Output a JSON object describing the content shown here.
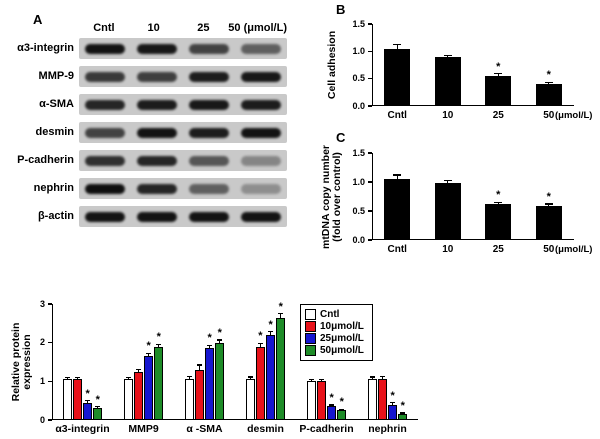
{
  "panel_a": {
    "label": "A",
    "lane_headers": [
      "Cntl",
      "10",
      "25",
      "50 (μmol/L)"
    ],
    "rows": [
      {
        "label": "α3-integrin",
        "bands": [
          0.95,
          0.92,
          0.7,
          0.55
        ]
      },
      {
        "label": "MMP-9",
        "bands": [
          0.75,
          0.72,
          0.9,
          0.92
        ]
      },
      {
        "label": "α-SMA",
        "bands": [
          0.85,
          0.9,
          0.92,
          0.9
        ]
      },
      {
        "label": "desmin",
        "bands": [
          0.7,
          0.95,
          0.9,
          0.95
        ]
      },
      {
        "label": "P-cadherin",
        "bands": [
          0.8,
          0.85,
          0.6,
          0.35
        ]
      },
      {
        "label": "nephrin",
        "bands": [
          0.97,
          0.85,
          0.55,
          0.3
        ]
      },
      {
        "label": "β-actin",
        "bands": [
          0.95,
          0.95,
          0.95,
          0.95
        ]
      }
    ]
  },
  "chart_data": [
    {
      "id": "B",
      "panel_label": "B",
      "type": "bar",
      "ylabel": "Cell adhesion",
      "categories": [
        "Cntl",
        "10",
        "25",
        "50"
      ],
      "unit_label": "(μmol/L)",
      "values": [
        1.05,
        0.9,
        0.55,
        0.4
      ],
      "errors": [
        0.08,
        0.03,
        0.04,
        0.03
      ],
      "sig": [
        false,
        false,
        true,
        true
      ],
      "ylim": [
        0,
        1.5
      ],
      "yticks": [
        "0.0",
        "0.5",
        "1.0",
        "1.5"
      ],
      "bar_color": "#000000"
    },
    {
      "id": "C",
      "panel_label": "C",
      "type": "bar",
      "ylabel": [
        "mtDNA copy number",
        "(fold over control)"
      ],
      "categories": [
        "Cntl",
        "10",
        "25",
        "50"
      ],
      "unit_label": "(μmol/L)",
      "values": [
        1.05,
        0.98,
        0.62,
        0.58
      ],
      "errors": [
        0.07,
        0.04,
        0.03,
        0.04
      ],
      "sig": [
        false,
        false,
        true,
        true
      ],
      "ylim": [
        0,
        1.5
      ],
      "yticks": [
        "0.0",
        "0.5",
        "1.0",
        "1.5"
      ],
      "bar_color": "#000000"
    },
    {
      "id": "D",
      "type": "grouped-bar",
      "ylabel": [
        "Relative protein",
        "expression"
      ],
      "categories": [
        "α3-integrin",
        "MMP9",
        "α -SMA",
        "desmin",
        "P-cadherin",
        "nephrin"
      ],
      "legend": true,
      "ylim": [
        0,
        3
      ],
      "yticks": [
        "0",
        "1",
        "2",
        "3"
      ],
      "series": [
        {
          "name": "Cntl",
          "color": "#ffffff",
          "values": [
            1.05,
            1.05,
            1.05,
            1.05,
            1.0,
            1.05
          ],
          "errors": [
            0.05,
            0.05,
            0.08,
            0.06,
            0.05,
            0.06
          ],
          "sig": [
            false,
            false,
            false,
            false,
            false,
            false
          ]
        },
        {
          "name": "10μmol/L",
          "color": "#e8121a",
          "values": [
            1.05,
            1.25,
            1.3,
            1.9,
            1.0,
            1.05
          ],
          "errors": [
            0.05,
            0.06,
            0.12,
            0.08,
            0.05,
            0.07
          ],
          "sig": [
            false,
            false,
            false,
            true,
            false,
            false
          ]
        },
        {
          "name": "25μmol/L",
          "color": "#1616d0",
          "values": [
            0.45,
            1.65,
            1.85,
            2.2,
            0.35,
            0.4
          ],
          "errors": [
            0.05,
            0.07,
            0.08,
            0.08,
            0.04,
            0.05
          ],
          "sig": [
            true,
            true,
            true,
            true,
            true,
            true
          ]
        },
        {
          "name": "50μmol/L",
          "color": "#1e8c28",
          "values": [
            0.3,
            1.9,
            2.0,
            2.65,
            0.25,
            0.15
          ],
          "errors": [
            0.04,
            0.06,
            0.07,
            0.1,
            0.03,
            0.03
          ],
          "sig": [
            true,
            true,
            true,
            true,
            true,
            true
          ]
        }
      ]
    }
  ]
}
